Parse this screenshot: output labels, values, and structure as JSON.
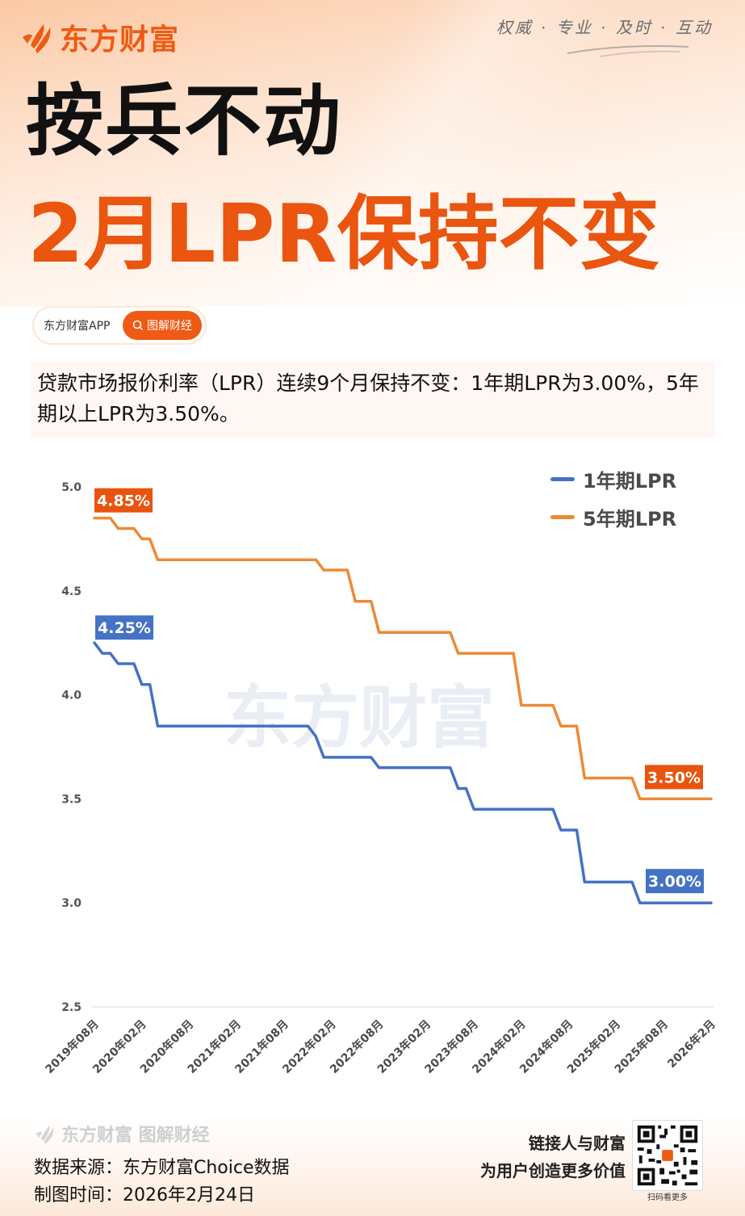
{
  "header": {
    "brand_name": "东方财富",
    "slogan": "权威 · 专业 · 及时 · 互动",
    "title_line1": "按兵不动",
    "title_line2": "2月LPR保持不变"
  },
  "app_pill": {
    "app_name": "东方财富APP",
    "search_label": "图解财经",
    "search_icon": "search-icon"
  },
  "summary": {
    "text": "贷款市场报价利率（LPR）连续9个月保持不变：1年期LPR为3.00%，5年期以上LPR为3.50%。"
  },
  "colors": {
    "brand_orange": "#ea5510",
    "series_1y": "#4472c4",
    "series_5y": "#ed8a35",
    "label_5y_bg": "#e8540d",
    "label_1y_bg": "#4472c4"
  },
  "watermark": "东方财富",
  "chart_data": {
    "type": "line",
    "title": "",
    "xlabel": "",
    "ylabel": "",
    "ylim": [
      2.5,
      5.0
    ],
    "yticks": [
      "5.0",
      "4.5",
      "4.0",
      "3.5",
      "3.0",
      "2.5"
    ],
    "grid": false,
    "legend_position": "top-right",
    "x_tick_labels": [
      "2019年08月",
      "2020年02月",
      "2020年08月",
      "2021年02月",
      "2021年08月",
      "2022年02月",
      "2022年08月",
      "2023年02月",
      "2023年08月",
      "2024年02月",
      "2024年08月",
      "2025年02月",
      "2025年08月",
      "2026年2月"
    ],
    "x_months": [
      "2019-08",
      "2019-09",
      "2019-10",
      "2019-11",
      "2019-12",
      "2020-01",
      "2020-02",
      "2020-03",
      "2020-04",
      "2020-05",
      "2020-06",
      "2020-07",
      "2020-08",
      "2020-09",
      "2020-10",
      "2020-11",
      "2020-12",
      "2021-01",
      "2021-02",
      "2021-03",
      "2021-04",
      "2021-05",
      "2021-06",
      "2021-07",
      "2021-08",
      "2021-09",
      "2021-10",
      "2021-11",
      "2021-12",
      "2022-01",
      "2022-02",
      "2022-03",
      "2022-04",
      "2022-05",
      "2022-06",
      "2022-07",
      "2022-08",
      "2022-09",
      "2022-10",
      "2022-11",
      "2022-12",
      "2023-01",
      "2023-02",
      "2023-03",
      "2023-04",
      "2023-05",
      "2023-06",
      "2023-07",
      "2023-08",
      "2023-09",
      "2023-10",
      "2023-11",
      "2023-12",
      "2024-01",
      "2024-02",
      "2024-03",
      "2024-04",
      "2024-05",
      "2024-06",
      "2024-07",
      "2024-08",
      "2024-09",
      "2024-10",
      "2024-11",
      "2024-12",
      "2025-01",
      "2025-02",
      "2025-03",
      "2025-04",
      "2025-05",
      "2025-06",
      "2025-07",
      "2025-08",
      "2025-09",
      "2025-10",
      "2025-11",
      "2025-12",
      "2026-01",
      "2026-02"
    ],
    "series": [
      {
        "name": "1年期LPR",
        "color": "#4472c4",
        "values": [
          4.25,
          4.2,
          4.2,
          4.15,
          4.15,
          4.15,
          4.05,
          4.05,
          3.85,
          3.85,
          3.85,
          3.85,
          3.85,
          3.85,
          3.85,
          3.85,
          3.85,
          3.85,
          3.85,
          3.85,
          3.85,
          3.85,
          3.85,
          3.85,
          3.85,
          3.85,
          3.85,
          3.85,
          3.8,
          3.7,
          3.7,
          3.7,
          3.7,
          3.7,
          3.7,
          3.7,
          3.65,
          3.65,
          3.65,
          3.65,
          3.65,
          3.65,
          3.65,
          3.65,
          3.65,
          3.65,
          3.55,
          3.55,
          3.45,
          3.45,
          3.45,
          3.45,
          3.45,
          3.45,
          3.45,
          3.45,
          3.45,
          3.45,
          3.45,
          3.35,
          3.35,
          3.35,
          3.1,
          3.1,
          3.1,
          3.1,
          3.1,
          3.1,
          3.1,
          3.0,
          3.0,
          3.0,
          3.0,
          3.0,
          3.0,
          3.0,
          3.0,
          3.0,
          3.0
        ],
        "start_label": "4.25%",
        "end_label": "3.00%"
      },
      {
        "name": "5年期LPR",
        "color": "#ed8a35",
        "values": [
          4.85,
          4.85,
          4.85,
          4.8,
          4.8,
          4.8,
          4.75,
          4.75,
          4.65,
          4.65,
          4.65,
          4.65,
          4.65,
          4.65,
          4.65,
          4.65,
          4.65,
          4.65,
          4.65,
          4.65,
          4.65,
          4.65,
          4.65,
          4.65,
          4.65,
          4.65,
          4.65,
          4.65,
          4.65,
          4.6,
          4.6,
          4.6,
          4.6,
          4.45,
          4.45,
          4.45,
          4.3,
          4.3,
          4.3,
          4.3,
          4.3,
          4.3,
          4.3,
          4.3,
          4.3,
          4.3,
          4.2,
          4.2,
          4.2,
          4.2,
          4.2,
          4.2,
          4.2,
          4.2,
          3.95,
          3.95,
          3.95,
          3.95,
          3.95,
          3.85,
          3.85,
          3.85,
          3.6,
          3.6,
          3.6,
          3.6,
          3.6,
          3.6,
          3.6,
          3.5,
          3.5,
          3.5,
          3.5,
          3.5,
          3.5,
          3.5,
          3.5,
          3.5,
          3.5
        ],
        "start_label": "4.85%",
        "end_label": "3.50%"
      }
    ]
  },
  "footer": {
    "logo_text": "东方财富 图解财经",
    "source": "数据来源：东方财富Choice数据",
    "made_time": "制图时间：2026年2月24日",
    "tagline_1": "链接人与财富",
    "tagline_2": "为用户创造更多价值",
    "qr_caption": "扫码看更多"
  }
}
